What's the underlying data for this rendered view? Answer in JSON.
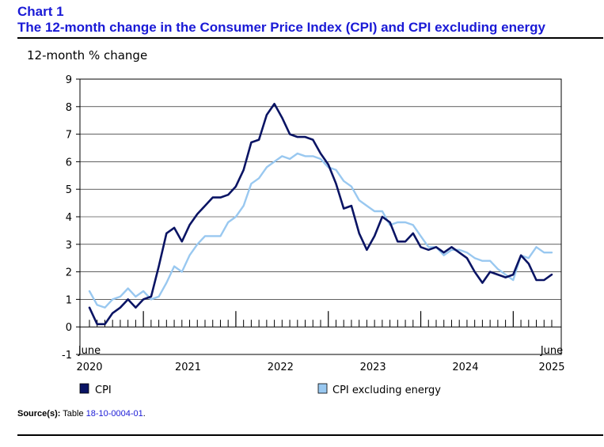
{
  "header": {
    "chart_number": "Chart 1",
    "title": "The 12-month change in the Consumer Price Index (CPI) and CPI excluding energy"
  },
  "chart_data": {
    "type": "line",
    "ylabel": "12-month % change",
    "ylim": [
      -1,
      9
    ],
    "y_ticks": [
      -1,
      0,
      1,
      2,
      3,
      4,
      5,
      6,
      7,
      8,
      9
    ],
    "x_start": {
      "month": "June",
      "year": "2020"
    },
    "x_end": {
      "month": "June",
      "year": "2025"
    },
    "year_labels": [
      "2021",
      "2022",
      "2023",
      "2024"
    ],
    "series": [
      {
        "name": "CPI",
        "color": "#0a1464",
        "values": [
          0.7,
          0.1,
          0.1,
          0.5,
          0.7,
          1.0,
          0.7,
          1.0,
          1.1,
          2.2,
          3.4,
          3.6,
          3.1,
          3.7,
          4.1,
          4.4,
          4.7,
          4.7,
          4.8,
          5.1,
          5.7,
          6.7,
          6.8,
          7.7,
          8.1,
          7.6,
          7.0,
          6.9,
          6.9,
          6.8,
          6.3,
          5.9,
          5.2,
          4.3,
          4.4,
          3.4,
          2.8,
          3.3,
          4.0,
          3.8,
          3.1,
          3.1,
          3.4,
          2.9,
          2.8,
          2.9,
          2.7,
          2.9,
          2.7,
          2.5,
          2.0,
          1.6,
          2.0,
          1.9,
          1.8,
          1.9,
          2.6,
          2.3,
          1.7,
          1.7,
          1.9
        ]
      },
      {
        "name": "CPI excluding energy",
        "color": "#99c8f0",
        "values": [
          1.3,
          0.8,
          0.7,
          1.0,
          1.1,
          1.4,
          1.1,
          1.3,
          1.0,
          1.1,
          1.6,
          2.2,
          2.0,
          2.6,
          3.0,
          3.3,
          3.3,
          3.3,
          3.8,
          4.0,
          4.4,
          5.2,
          5.4,
          5.8,
          6.0,
          6.2,
          6.1,
          6.3,
          6.2,
          6.2,
          6.1,
          5.8,
          5.7,
          5.3,
          5.1,
          4.6,
          4.4,
          4.2,
          4.2,
          3.7,
          3.8,
          3.8,
          3.7,
          3.3,
          2.9,
          2.9,
          2.6,
          2.8,
          2.8,
          2.7,
          2.5,
          2.4,
          2.4,
          2.1,
          1.9,
          1.7,
          2.6,
          2.5,
          2.9,
          2.7,
          2.7
        ]
      }
    ]
  },
  "source": {
    "label": "Source(s):",
    "text": "Table",
    "link": "18-10-0004-01",
    "end": "."
  }
}
